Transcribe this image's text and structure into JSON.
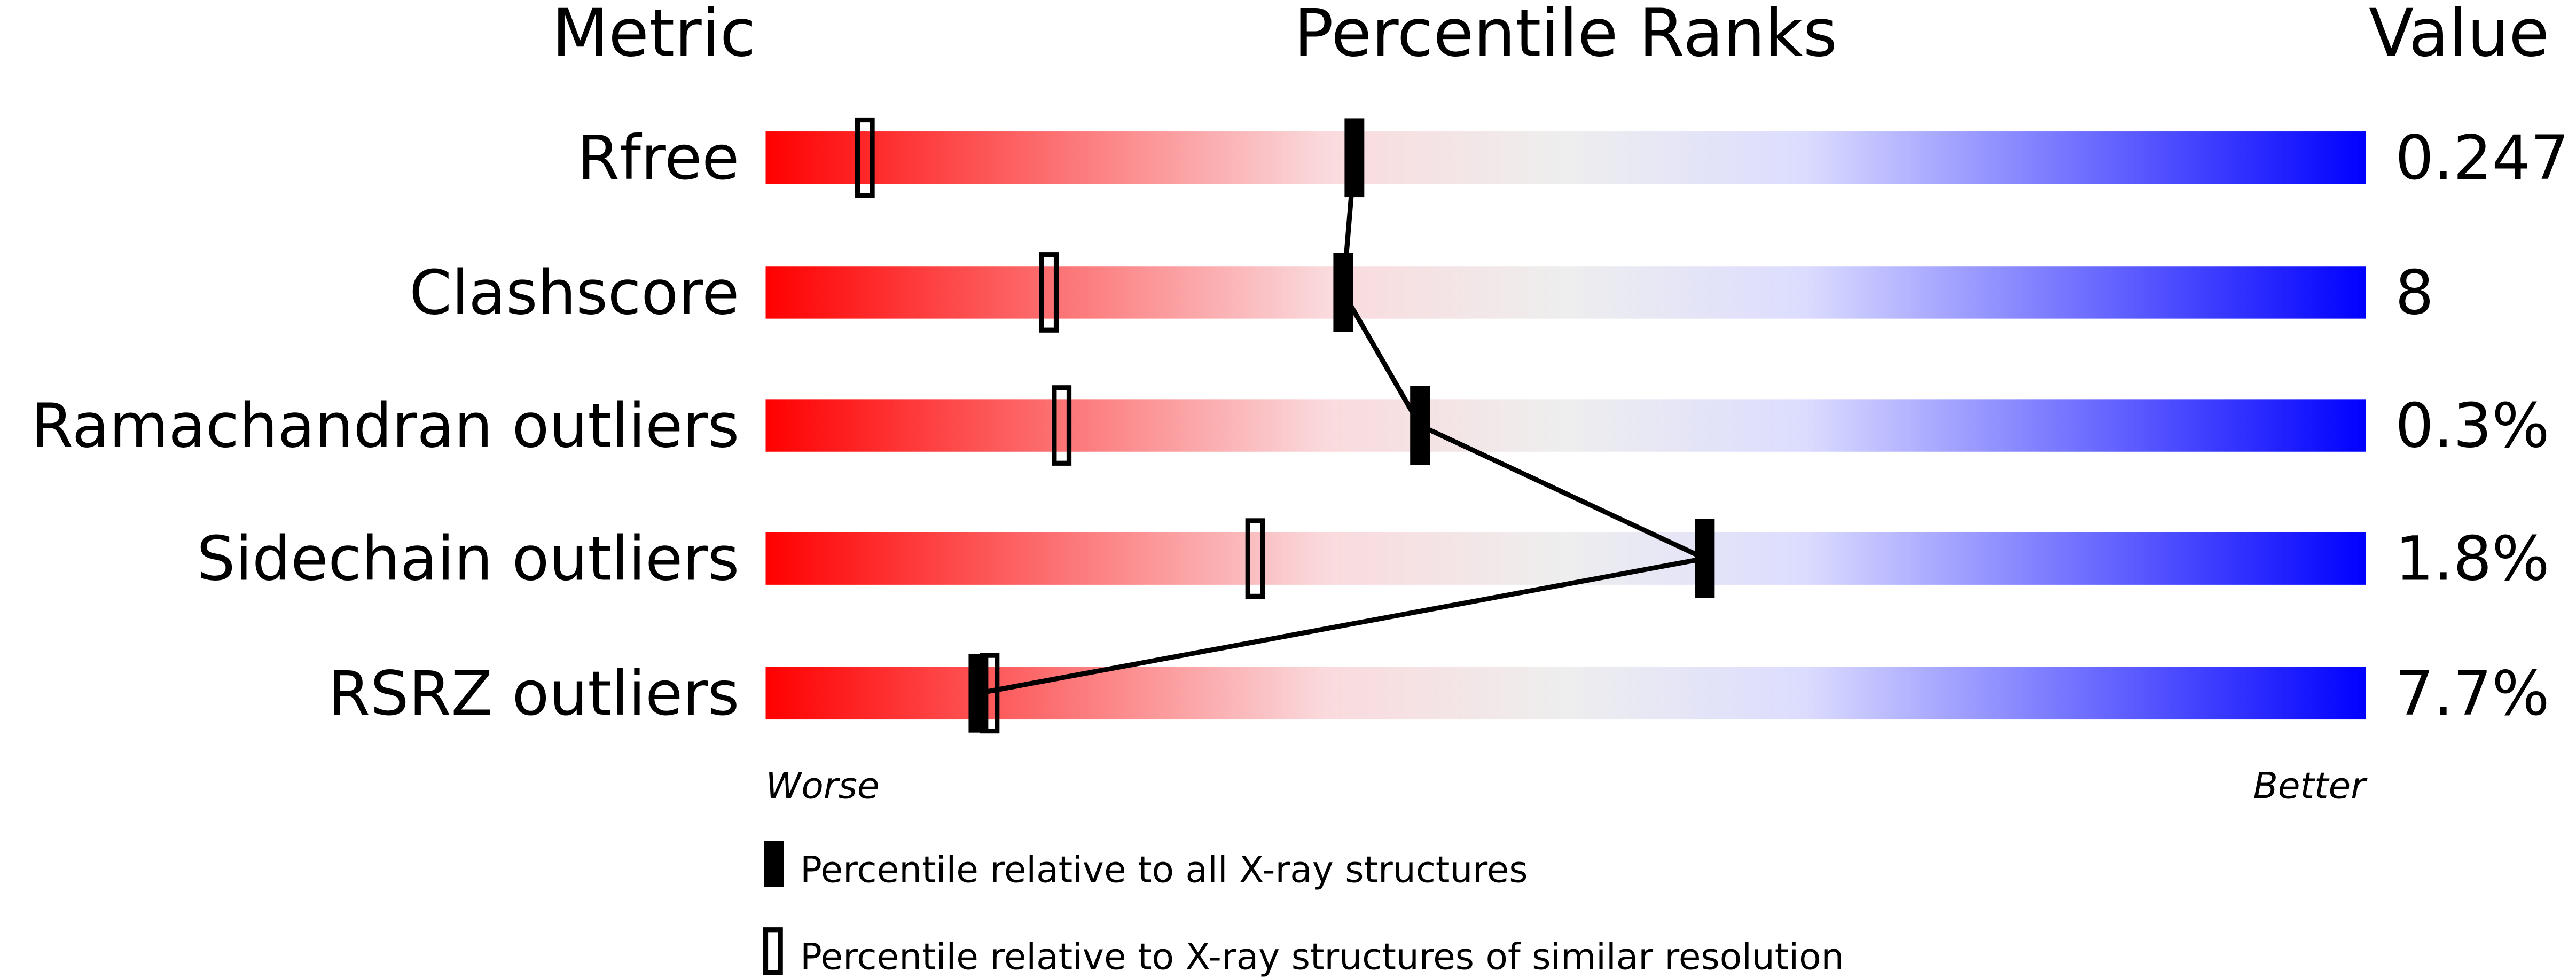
{
  "chart_data": {
    "type": "percentile-bar",
    "headers": {
      "metric": "Metric",
      "ranks": "Percentile Ranks",
      "value": "Value"
    },
    "xlim": [
      0,
      100
    ],
    "axis_labels": {
      "left": "Worse",
      "right": "Better"
    },
    "gradient_colors": [
      "#ff0000",
      "#fadadd",
      "#eeeeee",
      "#dcdcff",
      "#0000ff"
    ],
    "rows": [
      {
        "metric": "Rfree",
        "value": "0.247",
        "percentile_all": 36.8,
        "percentile_similar": 6.2
      },
      {
        "metric": "Clashscore",
        "value": "8",
        "percentile_all": 36.1,
        "percentile_similar": 17.7
      },
      {
        "metric": "Ramachandran outliers",
        "value": "0.3%",
        "percentile_all": 40.9,
        "percentile_similar": 18.5
      },
      {
        "metric": "Sidechain outliers",
        "value": "1.8%",
        "percentile_all": 58.7,
        "percentile_similar": 30.6
      },
      {
        "metric": "RSRZ outliers",
        "value": "7.7%",
        "percentile_all": 13.3,
        "percentile_similar": 14.0
      }
    ],
    "legend": [
      {
        "marker": "filled",
        "label": "Percentile relative to all X-ray structures"
      },
      {
        "marker": "open",
        "label": "Percentile relative to X-ray structures of similar resolution"
      }
    ]
  }
}
